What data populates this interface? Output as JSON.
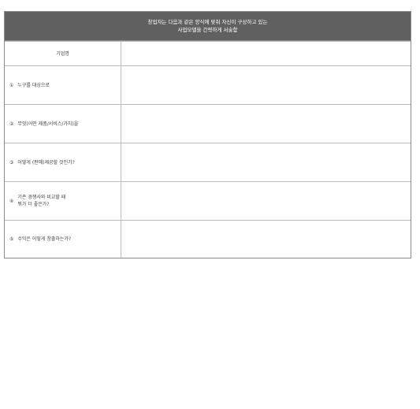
{
  "header": {
    "line1": "창업자는 다음과 같은 양식에 맞춰 자신이 구상하고 있는",
    "line2": "사업모델을 간략하게 서술함"
  },
  "company_row": {
    "label": "기업명",
    "value": ""
  },
  "questions": [
    {
      "number": "①",
      "label": "누구를 대상으로",
      "value": ""
    },
    {
      "number": "②",
      "label": "무엇(어떤 제품/서비스/가치)을",
      "value": ""
    },
    {
      "number": "③",
      "label": "어떻게 (판매)제공할 것인가?",
      "value": ""
    },
    {
      "number": "④",
      "label": "기존 경쟁사와 비교할 때\n뭐가 더 좋은가?",
      "value": ""
    },
    {
      "number": "⑤",
      "label": "수익은 어떻게 창출하는가?",
      "value": ""
    }
  ]
}
